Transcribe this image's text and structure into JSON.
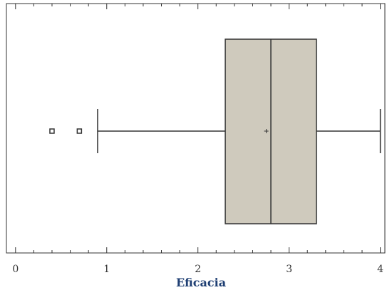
{
  "chart_data": {
    "type": "boxplot",
    "title": "",
    "xlabel": "Eficacia",
    "ylabel": "",
    "xlim": [
      -0.1,
      4.05
    ],
    "x_ticks": [
      0,
      1,
      2,
      3,
      4
    ],
    "x_tick_labels": [
      "0",
      "1",
      "2",
      "3",
      "4"
    ],
    "orientation": "horizontal",
    "grid": false,
    "series": [
      {
        "whisker_low": 0.9,
        "q1": 2.3,
        "median": 2.8,
        "q3": 3.3,
        "whisker_high": 4.0,
        "mean": 2.75,
        "outliers": [
          0.4,
          0.7
        ]
      }
    ],
    "colors": {
      "box_fill": "#cfcabd",
      "box_stroke": "#333333",
      "axis": "#333333",
      "axis_title": "#1f3f73"
    }
  }
}
